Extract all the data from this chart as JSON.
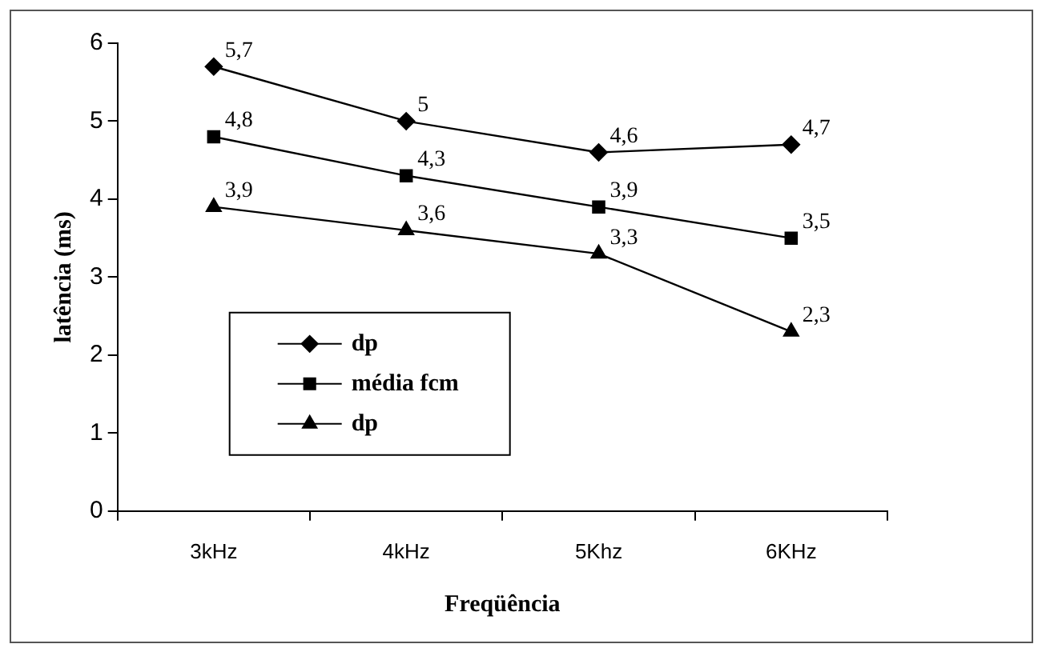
{
  "chart_data": {
    "type": "line",
    "xlabel": "Freqüência",
    "ylabel": "latência (ms)",
    "categories": [
      "3kHz",
      "4kHz",
      "5Khz",
      "6KHz"
    ],
    "ylim": [
      0,
      6
    ],
    "yticks": [
      0,
      1,
      2,
      3,
      4,
      5,
      6
    ],
    "grid": false,
    "legend": "bottom left",
    "line_style": "solid",
    "series": [
      {
        "name": "dp",
        "color": "#000000",
        "marker": "diamond",
        "values": [
          5.7,
          5,
          4.6,
          4.7
        ],
        "value_labels": [
          "5,7",
          "5",
          "4,6",
          "4,7"
        ]
      },
      {
        "name": "média fcm",
        "color": "#000000",
        "marker": "square",
        "values": [
          4.8,
          4.3,
          3.9,
          3.5
        ],
        "value_labels": [
          "4,8",
          "4,3",
          "3,9",
          "3,5"
        ]
      },
      {
        "name": "dp",
        "color": "#000000",
        "marker": "triangle",
        "values": [
          3.9,
          3.6,
          3.3,
          2.3
        ],
        "value_labels": [
          "3,9",
          "3,6",
          "3,3",
          "2,3"
        ]
      }
    ]
  }
}
